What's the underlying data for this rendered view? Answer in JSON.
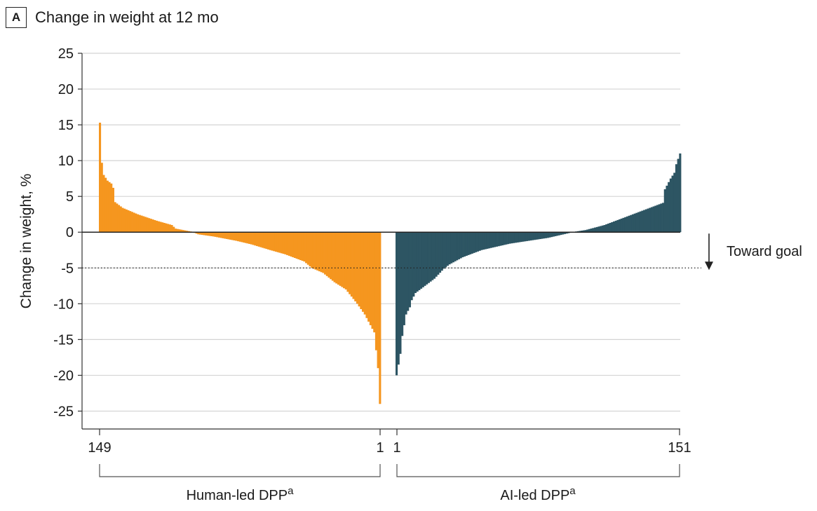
{
  "panel": {
    "letter": "A",
    "title": "Change in weight at 12 mo"
  },
  "colors": {
    "human": "#f5961f",
    "ai": "#2d5563",
    "grid": "#d4d4d4",
    "axis": "#333333"
  },
  "chart_data": {
    "type": "bar",
    "title": "Change in weight at 12 mo",
    "ylabel": "Change in weight, %",
    "ylim": [
      -27.5,
      25
    ],
    "yticks": [
      25,
      20,
      15,
      10,
      5,
      0,
      -5,
      -10,
      -15,
      -20,
      -25
    ],
    "ytick_labels": [
      "25",
      "20",
      "15",
      "10",
      "5",
      "0",
      "-5",
      "-10",
      "-15",
      "-20",
      "-25"
    ],
    "grid": true,
    "reference_line": {
      "y": -5,
      "style": "dotted"
    },
    "annotation": {
      "text": "Toward goal",
      "direction": "down"
    },
    "series": [
      {
        "name": "Human-led DPP",
        "superscript": "a",
        "n": 149,
        "x_start_label": "149",
        "x_end_label": "1",
        "order": "descending",
        "keypoints": [
          [
            0,
            15.3
          ],
          [
            1,
            9.7
          ],
          [
            2,
            8
          ],
          [
            3,
            7.6
          ],
          [
            4,
            7.2
          ],
          [
            6,
            6.8
          ],
          [
            7,
            6.2
          ],
          [
            8,
            4.2
          ],
          [
            12,
            3.4
          ],
          [
            20,
            2.5
          ],
          [
            30,
            1.6
          ],
          [
            38,
            1.0
          ],
          [
            40,
            0.5
          ],
          [
            48,
            0.1
          ],
          [
            52,
            -0.3
          ],
          [
            60,
            -0.6
          ],
          [
            72,
            -1.2
          ],
          [
            80,
            -1.7
          ],
          [
            90,
            -2.5
          ],
          [
            98,
            -3.1
          ],
          [
            108,
            -4.1
          ],
          [
            112,
            -5.0
          ],
          [
            118,
            -5.7
          ],
          [
            124,
            -7.0
          ],
          [
            130,
            -8.0
          ],
          [
            136,
            -10.0
          ],
          [
            140,
            -11.5
          ],
          [
            145,
            -14.0
          ],
          [
            147,
            -19.0
          ],
          [
            148,
            -24.0
          ]
        ]
      },
      {
        "name": "AI-led DPP",
        "superscript": "a",
        "n": 151,
        "x_start_label": "1",
        "x_end_label": "151",
        "order": "ascending",
        "keypoints": [
          [
            0,
            -20.0
          ],
          [
            1,
            -18.5
          ],
          [
            2,
            -17.0
          ],
          [
            3,
            -14.5
          ],
          [
            4,
            -13.0
          ],
          [
            5,
            -11.5
          ],
          [
            7,
            -10.5
          ],
          [
            8,
            -9.5
          ],
          [
            10,
            -8.5
          ],
          [
            14,
            -7.7
          ],
          [
            20,
            -6.5
          ],
          [
            25,
            -5.1
          ],
          [
            28,
            -4.5
          ],
          [
            35,
            -3.5
          ],
          [
            45,
            -2.5
          ],
          [
            60,
            -1.6
          ],
          [
            80,
            -0.8
          ],
          [
            90,
            -0.2
          ],
          [
            95,
            0.1
          ],
          [
            100,
            0.3
          ],
          [
            110,
            1.0
          ],
          [
            120,
            2.0
          ],
          [
            130,
            3.0
          ],
          [
            138,
            3.8
          ],
          [
            141,
            4.1
          ],
          [
            142,
            6.0
          ],
          [
            144,
            7.0
          ],
          [
            145,
            7.5
          ],
          [
            147,
            8.3
          ],
          [
            148,
            9.5
          ],
          [
            150,
            11.0
          ]
        ]
      }
    ]
  },
  "legend": {
    "human_label": "Human-led DPP",
    "ai_label": "AI-led DPP",
    "superscript": "a"
  }
}
